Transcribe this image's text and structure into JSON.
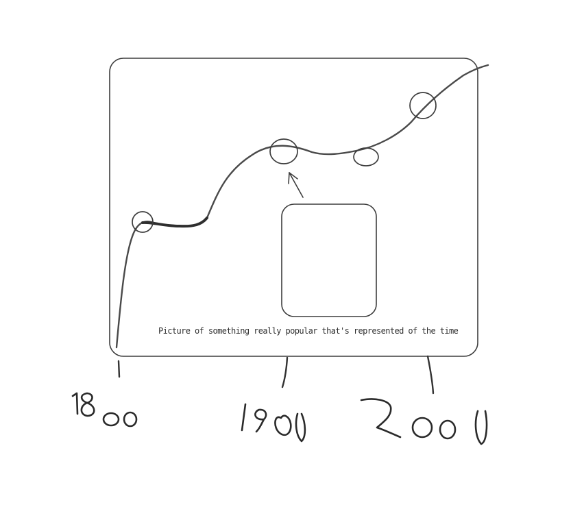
{
  "diagram": {
    "caption": "Picture of something really popular that's represented of the time",
    "year_labels": [
      "1800",
      "190",
      "2000"
    ]
  }
}
